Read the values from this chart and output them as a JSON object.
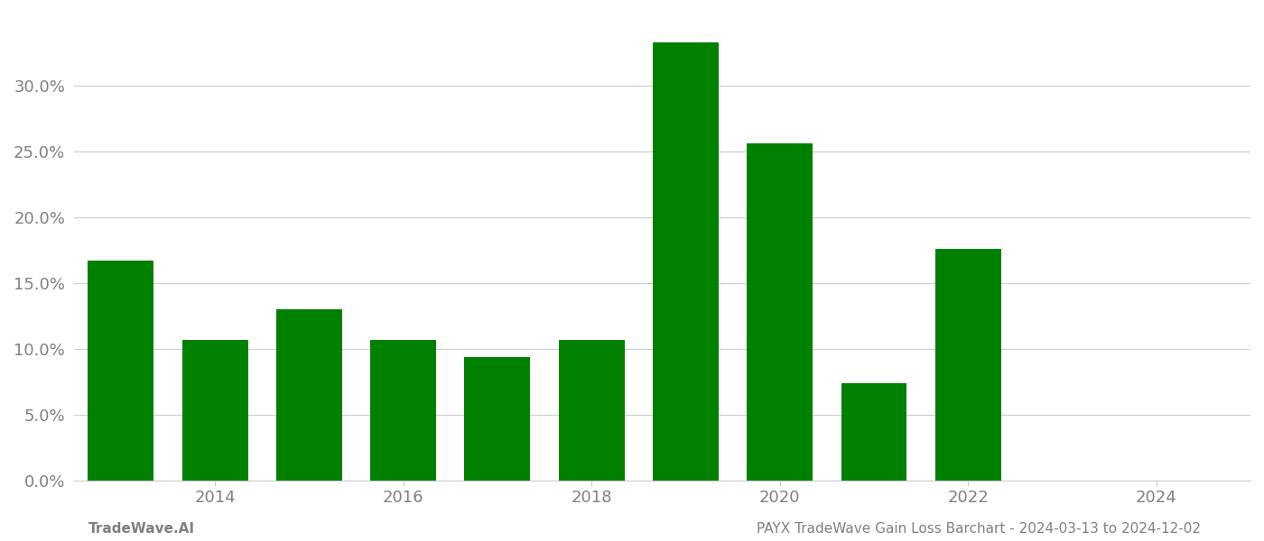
{
  "bar_data": [
    {
      "year": 2013,
      "value": 0.167
    },
    {
      "year": 2014,
      "value": 0.107
    },
    {
      "year": 2015,
      "value": 0.13
    },
    {
      "year": 2016,
      "value": 0.107
    },
    {
      "year": 2017,
      "value": 0.094
    },
    {
      "year": 2018,
      "value": 0.107
    },
    {
      "year": 2019,
      "value": 0.333
    },
    {
      "year": 2020,
      "value": 0.256
    },
    {
      "year": 2021,
      "value": 0.074
    },
    {
      "year": 2022,
      "value": 0.176
    },
    {
      "year": 2023,
      "value": 0.0
    }
  ],
  "bar_color": "#008000",
  "background_color": "#ffffff",
  "grid_color": "#cccccc",
  "xlabel_color": "#808080",
  "ylabel_color": "#808080",
  "footer_left": "TradeWave.AI",
  "footer_right": "PAYX TradeWave Gain Loss Barchart - 2024-03-13 to 2024-12-02",
  "footer_color": "#808080",
  "footer_fontsize": 11,
  "ylim": [
    0,
    0.355
  ],
  "yticks": [
    0.0,
    0.05,
    0.1,
    0.15,
    0.2,
    0.25,
    0.3
  ],
  "xtick_years": [
    2014,
    2016,
    2018,
    2020,
    2022,
    2024
  ],
  "xlim_left": 2012.5,
  "xlim_right": 2025.0,
  "bar_width": 0.7
}
